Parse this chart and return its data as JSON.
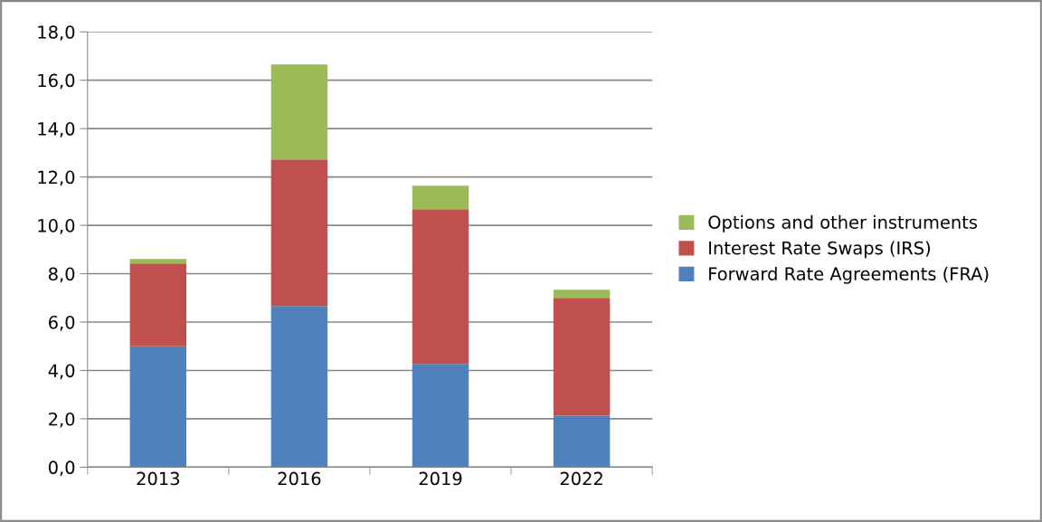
{
  "chart_data": {
    "type": "bar",
    "stacked": true,
    "categories": [
      "2013",
      "2016",
      "2019",
      "2022"
    ],
    "series": [
      {
        "name": "Forward Rate Agreements (FRA)",
        "color": "#4f81bd",
        "values": [
          5.0,
          6.66,
          4.27,
          2.13
        ]
      },
      {
        "name": "Interest Rate Swaps (IRS)",
        "color": "#c0504d",
        "values": [
          3.42,
          6.06,
          6.4,
          4.87
        ]
      },
      {
        "name": "Options and other instruments",
        "color": "#9bbb59",
        "values": [
          0.19,
          3.93,
          0.97,
          0.34
        ]
      }
    ],
    "ylim": [
      0,
      18
    ],
    "yticks": [
      {
        "value": 0,
        "label": "0,0"
      },
      {
        "value": 2,
        "label": "2,0"
      },
      {
        "value": 4,
        "label": "4,0"
      },
      {
        "value": 6,
        "label": "6,0"
      },
      {
        "value": 8,
        "label": "8,0"
      },
      {
        "value": 10,
        "label": "10,0"
      },
      {
        "value": 12,
        "label": "12,0"
      },
      {
        "value": 14,
        "label": "14,0"
      },
      {
        "value": 16,
        "label": "16,0"
      },
      {
        "value": 18,
        "label": "18,0"
      }
    ],
    "grid": "y",
    "legend": "right"
  }
}
